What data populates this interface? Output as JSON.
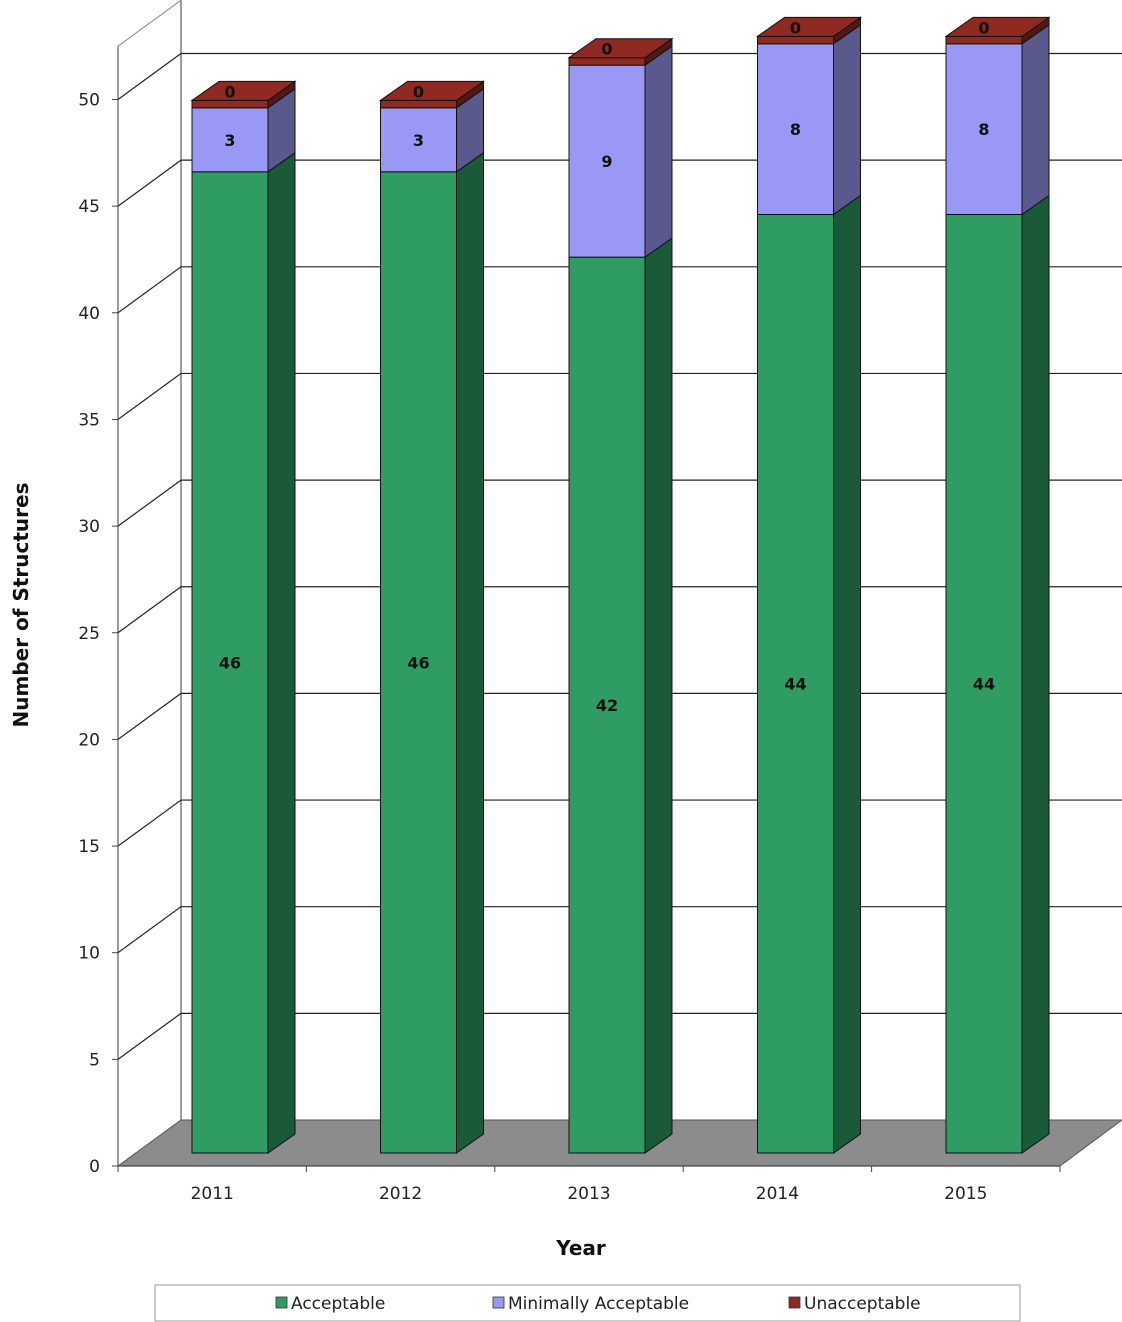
{
  "chart_data": {
    "type": "bar",
    "stacked": true,
    "three_d": true,
    "categories": [
      "2011",
      "2012",
      "2013",
      "2014",
      "2015"
    ],
    "series": [
      {
        "name": "Acceptable",
        "values": [
          46,
          46,
          42,
          44,
          44
        ],
        "color": "#2e9c63"
      },
      {
        "name": "Minimally Acceptable",
        "values": [
          3,
          3,
          9,
          8,
          8
        ],
        "color": "#9999f5"
      },
      {
        "name": "Unacceptable",
        "values": [
          0,
          0,
          0,
          0,
          0
        ],
        "color": "#8e2a22"
      }
    ],
    "xlabel": "Year",
    "ylabel": "Number of Structures",
    "ylim": [
      0,
      50
    ],
    "yticks": [
      "0",
      "5",
      "10",
      "15",
      "20",
      "25",
      "30",
      "35",
      "40",
      "45",
      "50"
    ],
    "grid": true,
    "legend": "bottom"
  }
}
